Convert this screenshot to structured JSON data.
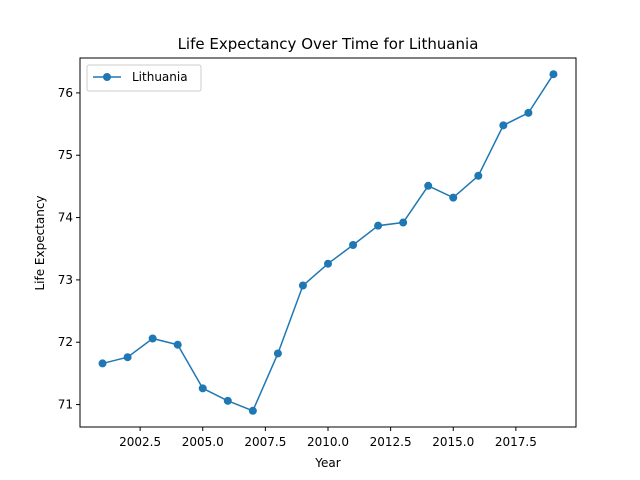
{
  "chart_data": {
    "type": "line",
    "title": "Life Expectancy Over Time for Lithuania",
    "xlabel": "Year",
    "ylabel": "Life Expectancy",
    "xlim": [
      2000.1,
      2019.9
    ],
    "ylim": [
      70.64,
      76.56
    ],
    "xticks": [
      2002.5,
      2005.0,
      2007.5,
      2010.0,
      2012.5,
      2015.0,
      2017.5
    ],
    "xtick_labels": [
      "2002.5",
      "2005.0",
      "2007.5",
      "2010.0",
      "2012.5",
      "2015.0",
      "2017.5"
    ],
    "yticks": [
      71,
      72,
      73,
      74,
      75,
      76
    ],
    "ytick_labels": [
      "71",
      "72",
      "73",
      "74",
      "75",
      "76"
    ],
    "grid": false,
    "legend": "top-left",
    "series": [
      {
        "name": "Lithuania",
        "color": "#1f77b4",
        "marker": "circle",
        "x": [
          2001,
          2002,
          2003,
          2004,
          2005,
          2006,
          2007,
          2008,
          2009,
          2010,
          2011,
          2012,
          2013,
          2014,
          2015,
          2016,
          2017,
          2018,
          2019
        ],
        "y": [
          71.66,
          71.76,
          72.06,
          71.96,
          71.26,
          71.06,
          70.9,
          71.82,
          72.91,
          73.26,
          73.56,
          73.87,
          73.92,
          74.51,
          74.32,
          74.67,
          75.48,
          75.68,
          76.3
        ]
      }
    ]
  }
}
